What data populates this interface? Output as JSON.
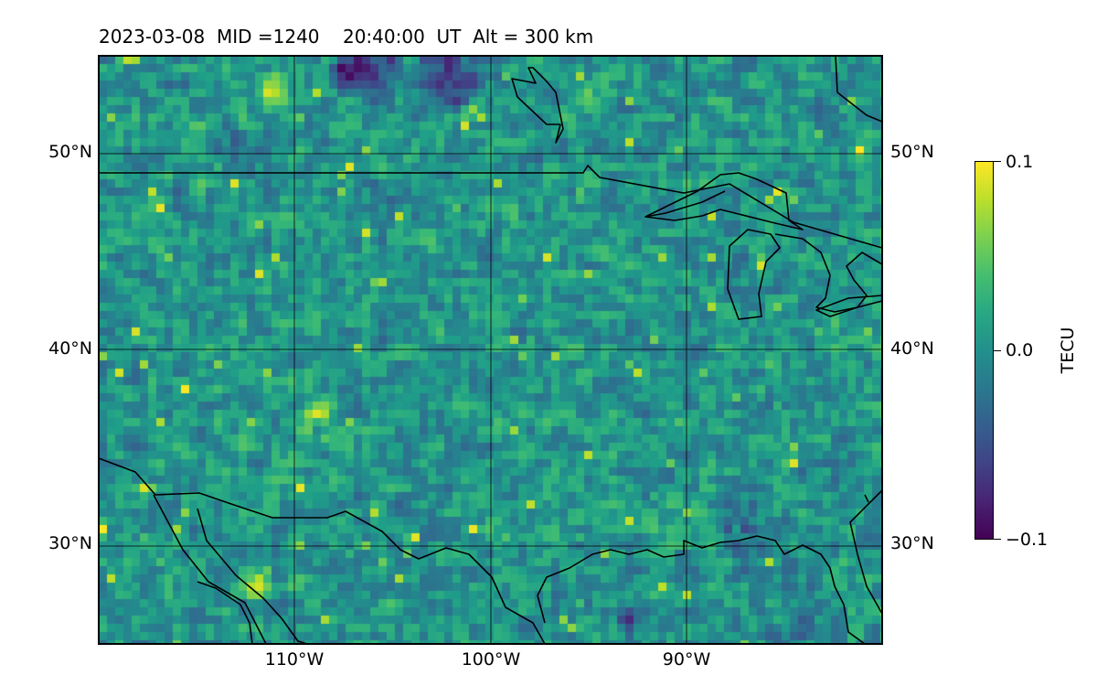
{
  "header": {
    "date": "2023-03-08",
    "mid_label": "MID =1240",
    "time": "20:40:00",
    "time_unit": "UT",
    "altitude": "Alt = 300 km"
  },
  "map": {
    "lat_labels": [
      "50°N",
      "40°N",
      "30°N"
    ],
    "lon_labels": [
      "110°W",
      "100°W",
      "90°W"
    ],
    "lat_range": [
      25,
      55
    ],
    "lon_range": [
      -120,
      -80
    ]
  },
  "colorbar": {
    "title": "TECU",
    "ticks": [
      "0.1",
      "0.0",
      "−0.1"
    ],
    "range": [
      -0.1,
      0.1
    ],
    "colormap": "viridis"
  },
  "colors": {
    "viridis_low": "#440154",
    "viridis_mid": "#21918c",
    "viridis_high": "#fde725",
    "coastline": "#000000",
    "gridline": "#000000"
  }
}
